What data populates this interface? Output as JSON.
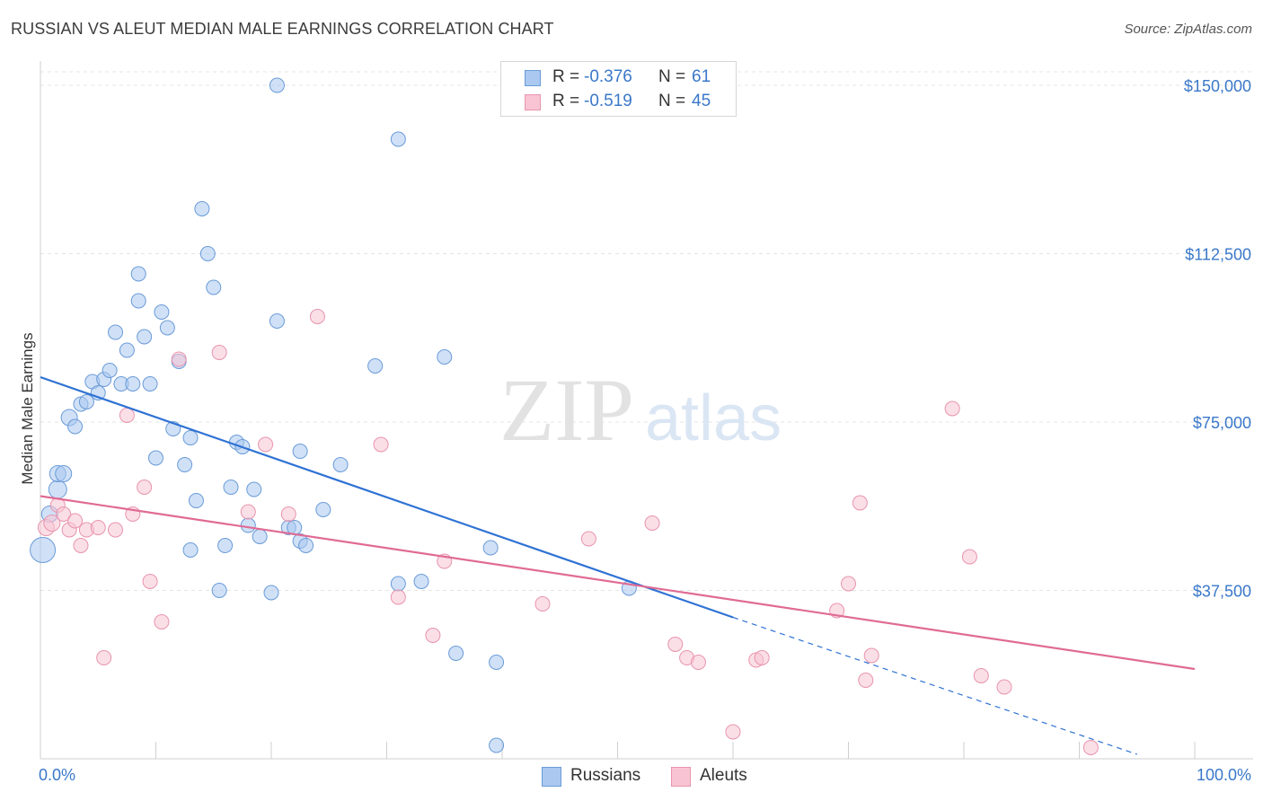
{
  "title": "RUSSIAN VS ALEUT MEDIAN MALE EARNINGS CORRELATION CHART",
  "source": "Source: ZipAtlas.com",
  "watermark": {
    "zip": "ZIP",
    "atlas": "atlas"
  },
  "legend_top": {
    "rows": [
      {
        "r_label": "R = ",
        "r_value": "-0.376",
        "n_label": "N = ",
        "n_value": "61",
        "color": "#aac8f0",
        "border": "#6a9bd8"
      },
      {
        "r_label": "R = ",
        "r_value": "-0.519",
        "n_label": "N = ",
        "n_value": "45",
        "color": "#f8c4d4",
        "border": "#e894ae"
      }
    ]
  },
  "legend_bottom": [
    {
      "label": "Russians",
      "color": "#aac8f0",
      "border": "#6a9bd8"
    },
    {
      "label": "Aleuts",
      "color": "#f8c4d4",
      "border": "#e894ae"
    }
  ],
  "chart_data": {
    "type": "scatter",
    "title": "RUSSIAN VS ALEUT MEDIAN MALE EARNINGS CORRELATION CHART",
    "xlabel": "",
    "ylabel": "Median Male Earnings",
    "xlim": [
      0,
      100
    ],
    "ylim": [
      0,
      153000
    ],
    "x_tick_labels": [
      "0.0%",
      "100.0%"
    ],
    "y_ticks": [
      37500,
      75000,
      112500,
      150000
    ],
    "y_tick_labels": [
      "$37,500",
      "$75,000",
      "$112,500",
      "$150,000"
    ],
    "grid": true,
    "series": [
      {
        "name": "Russians",
        "color": "#aac8f0",
        "stroke": "#6a9bd8",
        "r": -0.376,
        "n": 61,
        "trend": {
          "x0": 0,
          "y0": 85000,
          "x1": 60,
          "y1": 31500,
          "dash_x1": 95,
          "dash_y1": 1000,
          "color": "#2f72d4"
        },
        "points": [
          [
            0.2,
            46500,
            14
          ],
          [
            1.5,
            60000,
            10
          ],
          [
            1.5,
            63500,
            9
          ],
          [
            2.0,
            63500,
            9
          ],
          [
            0.8,
            54500,
            9
          ],
          [
            2.5,
            76000,
            9
          ],
          [
            3.0,
            74000,
            8
          ],
          [
            3.5,
            79000,
            8
          ],
          [
            4.0,
            79500,
            8
          ],
          [
            4.5,
            84000,
            8
          ],
          [
            5.0,
            81500,
            8
          ],
          [
            5.5,
            84500,
            8
          ],
          [
            6.0,
            86500,
            8
          ],
          [
            6.5,
            95000,
            8
          ],
          [
            7.0,
            83500,
            8
          ],
          [
            7.5,
            91000,
            8
          ],
          [
            8.0,
            83500,
            8
          ],
          [
            8.5,
            108000,
            8
          ],
          [
            8.5,
            102000,
            8
          ],
          [
            9.0,
            94000,
            8
          ],
          [
            9.5,
            83500,
            8
          ],
          [
            10.0,
            67000,
            8
          ],
          [
            10.5,
            99500,
            8
          ],
          [
            11.0,
            96000,
            8
          ],
          [
            11.5,
            73500,
            8
          ],
          [
            12.0,
            88500,
            8
          ],
          [
            12.5,
            65500,
            8
          ],
          [
            13.0,
            46500,
            8
          ],
          [
            13.0,
            71500,
            8
          ],
          [
            13.5,
            57500,
            8
          ],
          [
            14.0,
            122500,
            8
          ],
          [
            14.5,
            112500,
            8
          ],
          [
            15.0,
            105000,
            8
          ],
          [
            15.5,
            37500,
            8
          ],
          [
            16.0,
            47500,
            8
          ],
          [
            16.5,
            60500,
            8
          ],
          [
            17.0,
            70500,
            8
          ],
          [
            17.5,
            69500,
            8
          ],
          [
            18.0,
            52000,
            8
          ],
          [
            18.5,
            60000,
            8
          ],
          [
            19.0,
            49500,
            8
          ],
          [
            20.0,
            37000,
            8
          ],
          [
            20.5,
            97500,
            8
          ],
          [
            20.5,
            150000,
            8
          ],
          [
            21.5,
            51500,
            8
          ],
          [
            22.0,
            51500,
            8
          ],
          [
            22.5,
            68500,
            8
          ],
          [
            22.5,
            48500,
            8
          ],
          [
            23.0,
            47500,
            8
          ],
          [
            24.5,
            55500,
            8
          ],
          [
            26.0,
            65500,
            8
          ],
          [
            29.0,
            87500,
            8
          ],
          [
            31.0,
            39000,
            8
          ],
          [
            31.0,
            138000,
            8
          ],
          [
            33.0,
            39500,
            8
          ],
          [
            35.0,
            89500,
            8
          ],
          [
            36.0,
            23500,
            8
          ],
          [
            39.0,
            47000,
            8
          ],
          [
            39.5,
            21500,
            8
          ],
          [
            39.5,
            3000,
            8
          ],
          [
            51.0,
            38000,
            8
          ]
        ]
      },
      {
        "name": "Aleuts",
        "color": "#f8c4d4",
        "stroke": "#e894ae",
        "r": -0.519,
        "n": 45,
        "trend": {
          "x0": 0,
          "y0": 58500,
          "x1": 100,
          "y1": 20000,
          "color": "#e06b94"
        },
        "points": [
          [
            0.5,
            51500,
            9
          ],
          [
            1.0,
            52500,
            9
          ],
          [
            1.5,
            56500,
            8
          ],
          [
            2.0,
            54500,
            8
          ],
          [
            2.5,
            51000,
            8
          ],
          [
            3.0,
            53000,
            8
          ],
          [
            3.5,
            47500,
            8
          ],
          [
            4.0,
            51000,
            8
          ],
          [
            5.0,
            51500,
            8
          ],
          [
            5.5,
            22500,
            8
          ],
          [
            6.5,
            51000,
            8
          ],
          [
            7.5,
            76500,
            8
          ],
          [
            8.0,
            54500,
            8
          ],
          [
            9.0,
            60500,
            8
          ],
          [
            9.5,
            39500,
            8
          ],
          [
            10.5,
            30500,
            8
          ],
          [
            12.0,
            89000,
            8
          ],
          [
            15.5,
            90500,
            8
          ],
          [
            18.0,
            55000,
            8
          ],
          [
            19.5,
            70000,
            8
          ],
          [
            21.5,
            54500,
            8
          ],
          [
            24.0,
            98500,
            8
          ],
          [
            29.5,
            70000,
            8
          ],
          [
            31.0,
            36000,
            8
          ],
          [
            34.0,
            27500,
            8
          ],
          [
            35.0,
            44000,
            8
          ],
          [
            43.5,
            34500,
            8
          ],
          [
            47.5,
            49000,
            8
          ],
          [
            53.0,
            52500,
            8
          ],
          [
            55.0,
            25500,
            8
          ],
          [
            56.0,
            22500,
            8
          ],
          [
            57.0,
            21500,
            8
          ],
          [
            60.0,
            6000,
            8
          ],
          [
            62.0,
            22000,
            8
          ],
          [
            62.5,
            22500,
            8
          ],
          [
            69.0,
            33000,
            8
          ],
          [
            70.0,
            39000,
            8
          ],
          [
            71.0,
            57000,
            8
          ],
          [
            71.5,
            17500,
            8
          ],
          [
            72.0,
            23000,
            8
          ],
          [
            79.0,
            78000,
            8
          ],
          [
            80.5,
            45000,
            8
          ],
          [
            81.5,
            18500,
            8
          ],
          [
            83.5,
            16000,
            8
          ],
          [
            91.0,
            2500,
            8
          ]
        ]
      }
    ]
  }
}
